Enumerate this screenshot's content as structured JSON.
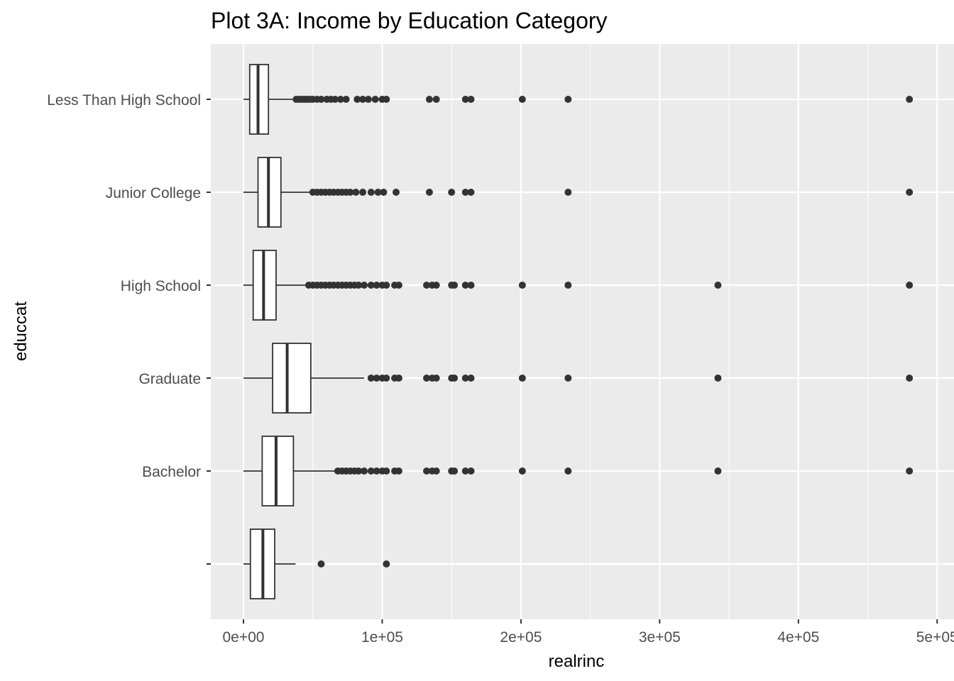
{
  "chart_data": {
    "type": "boxplot",
    "orientation": "horizontal",
    "title": "Plot 3A: Income by Education Category",
    "xlabel": "realrinc",
    "ylabel": "educcat",
    "xlim": [
      -12000,
      500000
    ],
    "x_ticks": [
      {
        "value": 0,
        "label": "0e+00"
      },
      {
        "value": 100000,
        "label": "1e+05"
      },
      {
        "value": 200000,
        "label": "2e+05"
      },
      {
        "value": 300000,
        "label": "3e+05"
      },
      {
        "value": 400000,
        "label": "4e+05"
      },
      {
        "value": 500000,
        "label": "5e+05"
      }
    ],
    "grid": true,
    "colors": {
      "panel": "#ebebeb",
      "grid": "#ffffff",
      "box_fill": "#ffffff",
      "box_stroke": "#333333",
      "outlier": "#333333",
      "tick": "#333333"
    },
    "categories": [
      "Less Than High School",
      "Junior College",
      "High School",
      "Graduate",
      "Bachelor",
      ""
    ],
    "boxes": [
      {
        "category": "Less Than High School",
        "whisker_low": 0,
        "q1": 4500,
        "median": 10500,
        "q3": 18000,
        "whisker_high": 37000,
        "outliers": [
          38000,
          40000,
          42000,
          44000,
          46000,
          48000,
          50000,
          53000,
          56000,
          60000,
          63000,
          66000,
          70000,
          74000,
          82000,
          86000,
          90000,
          95000,
          100000,
          103000,
          134000,
          139000,
          160000,
          164000,
          201000,
          234000,
          480000
        ]
      },
      {
        "category": "Junior College",
        "whisker_low": 0,
        "q1": 10500,
        "median": 18000,
        "q3": 27000,
        "whisker_high": 49000,
        "outliers": [
          50000,
          53000,
          56000,
          59000,
          62000,
          65000,
          68000,
          71000,
          74000,
          77000,
          81000,
          86000,
          92000,
          97000,
          101000,
          110000,
          134000,
          150000,
          160000,
          164000,
          234000,
          480000
        ]
      },
      {
        "category": "High School",
        "whisker_low": 0,
        "q1": 7000,
        "median": 14500,
        "q3": 23500,
        "whisker_high": 45000,
        "outliers": [
          47000,
          50000,
          53000,
          56000,
          59000,
          62000,
          65000,
          68000,
          71000,
          74000,
          77000,
          80000,
          83000,
          87000,
          92000,
          96000,
          100000,
          103000,
          109000,
          112000,
          132000,
          136000,
          139000,
          150000,
          152000,
          160000,
          164000,
          201000,
          234000,
          342000,
          480000
        ]
      },
      {
        "category": "Graduate",
        "whisker_low": 0,
        "q1": 21000,
        "median": 31500,
        "q3": 48500,
        "whisker_high": 87000,
        "outliers": [
          92000,
          96000,
          100000,
          103000,
          109000,
          112000,
          132000,
          136000,
          139000,
          150000,
          152000,
          160000,
          164000,
          201000,
          234000,
          342000,
          480000
        ]
      },
      {
        "category": "Bachelor",
        "whisker_low": 0,
        "q1": 13500,
        "median": 23500,
        "q3": 36000,
        "whisker_high": 67000,
        "outliers": [
          68000,
          71000,
          74000,
          77000,
          80000,
          83000,
          87000,
          92000,
          96000,
          100000,
          103000,
          109000,
          112000,
          132000,
          136000,
          139000,
          150000,
          152000,
          160000,
          164000,
          201000,
          234000,
          342000,
          480000
        ]
      },
      {
        "category": "",
        "whisker_low": 0,
        "q1": 5000,
        "median": 14000,
        "q3": 22500,
        "whisker_high": 37500,
        "outliers": [
          56000,
          103000
        ]
      }
    ]
  }
}
